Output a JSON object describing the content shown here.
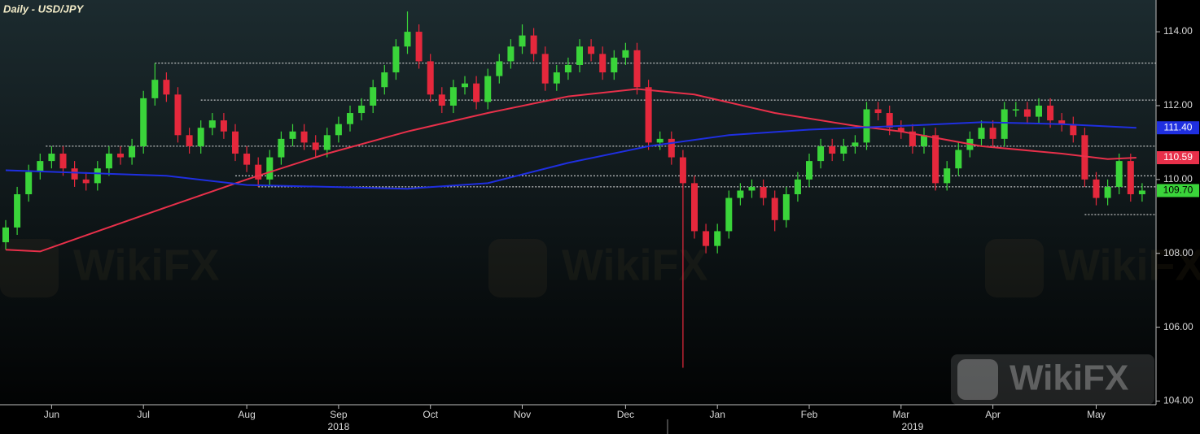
{
  "chart_data": {
    "type": "candlestick",
    "title": "Daily - USD/JPY",
    "categories": [
      null,
      null,
      null,
      null,
      "Jun",
      null,
      null,
      null,
      null,
      null,
      null,
      null,
      "Jul",
      null,
      null,
      null,
      null,
      null,
      null,
      null,
      null,
      "Aug",
      null,
      null,
      null,
      null,
      null,
      null,
      null,
      "Sep",
      null,
      null,
      null,
      null,
      null,
      null,
      null,
      "Oct",
      null,
      null,
      null,
      null,
      null,
      null,
      null,
      "Nov",
      null,
      null,
      null,
      null,
      null,
      null,
      null,
      null,
      "Dec",
      null,
      null,
      null,
      null,
      null,
      null,
      null,
      "Jan",
      null,
      null,
      null,
      null,
      null,
      null,
      null,
      "Feb",
      null,
      null,
      null,
      null,
      null,
      null,
      null,
      "Mar",
      null,
      null,
      null,
      null,
      null,
      null,
      null,
      "Apr",
      null,
      null,
      null,
      null,
      null,
      null,
      null,
      null,
      "May",
      null,
      null,
      null,
      null
    ],
    "year_labels": [
      {
        "label": "2018",
        "index": 29
      },
      {
        "label": "2019",
        "index": 79
      }
    ],
    "open": [
      108.3,
      108.7,
      109.6,
      110.2,
      110.5,
      110.7,
      110.3,
      110.0,
      109.9,
      110.3,
      110.7,
      110.6,
      110.9,
      112.2,
      112.7,
      112.3,
      111.2,
      110.9,
      111.4,
      111.6,
      111.3,
      110.7,
      110.4,
      110.0,
      110.6,
      111.1,
      111.3,
      111.0,
      110.8,
      111.2,
      111.5,
      111.8,
      112.0,
      112.5,
      112.9,
      113.6,
      114.0,
      113.2,
      112.3,
      112.0,
      112.5,
      112.6,
      112.1,
      112.8,
      113.2,
      113.6,
      113.9,
      113.4,
      112.6,
      112.9,
      113.1,
      113.6,
      113.4,
      112.9,
      113.3,
      113.5,
      112.5,
      111.0,
      111.1,
      110.6,
      109.9,
      108.6,
      108.2,
      108.6,
      109.5,
      109.7,
      109.8,
      109.5,
      108.9,
      109.6,
      110.0,
      110.5,
      110.9,
      110.7,
      110.9,
      111.0,
      111.9,
      111.8,
      111.4,
      111.3,
      110.9,
      111.2,
      109.9,
      110.3,
      110.8,
      111.1,
      111.4,
      111.1,
      111.9,
      111.9,
      111.7,
      112.0,
      111.6,
      111.5,
      111.2,
      110.0,
      109.5,
      109.8,
      110.5,
      109.6
    ],
    "high": [
      108.9,
      109.8,
      110.4,
      110.7,
      110.9,
      110.9,
      110.5,
      110.2,
      110.5,
      110.9,
      110.9,
      111.1,
      112.4,
      113.15,
      112.9,
      112.5,
      111.4,
      111.6,
      111.8,
      111.8,
      111.5,
      110.9,
      110.6,
      110.8,
      111.3,
      111.5,
      111.5,
      111.2,
      111.4,
      111.7,
      112.0,
      112.2,
      112.7,
      113.1,
      113.8,
      114.55,
      114.2,
      113.4,
      112.5,
      112.7,
      112.8,
      112.8,
      113.0,
      113.4,
      113.8,
      114.2,
      114.1,
      113.6,
      113.1,
      113.3,
      113.8,
      113.8,
      113.6,
      113.5,
      113.7,
      113.7,
      112.7,
      111.3,
      111.3,
      110.8,
      110.1,
      108.8,
      108.8,
      109.7,
      109.9,
      110.0,
      110.0,
      109.7,
      109.8,
      110.2,
      110.7,
      111.1,
      111.1,
      111.1,
      111.2,
      112.1,
      112.1,
      112.0,
      111.6,
      111.5,
      111.4,
      111.4,
      110.5,
      111.0,
      111.3,
      111.6,
      111.6,
      112.1,
      112.1,
      112.1,
      112.2,
      112.2,
      111.8,
      111.7,
      111.4,
      110.2,
      110.0,
      110.7,
      110.7,
      109.9
    ],
    "low": [
      108.1,
      108.5,
      109.4,
      110.0,
      110.3,
      110.1,
      109.8,
      109.7,
      109.7,
      110.1,
      110.4,
      110.4,
      110.7,
      112.0,
      112.1,
      111.0,
      110.7,
      110.7,
      111.2,
      111.1,
      110.5,
      110.2,
      109.8,
      109.8,
      110.4,
      110.9,
      110.8,
      110.6,
      110.6,
      111.0,
      111.3,
      111.6,
      111.8,
      112.3,
      112.7,
      113.4,
      113.0,
      112.1,
      111.8,
      111.8,
      112.3,
      111.9,
      111.9,
      112.6,
      113.0,
      113.4,
      113.2,
      112.4,
      112.4,
      112.7,
      112.9,
      113.2,
      112.7,
      112.7,
      113.1,
      112.3,
      110.8,
      110.8,
      110.4,
      104.9,
      108.4,
      108.0,
      108.0,
      108.4,
      109.3,
      109.5,
      109.3,
      108.6,
      108.7,
      109.4,
      109.8,
      110.3,
      110.5,
      110.5,
      110.7,
      110.8,
      111.6,
      111.2,
      111.1,
      110.7,
      110.7,
      109.7,
      109.7,
      110.1,
      110.6,
      110.9,
      110.9,
      110.9,
      111.7,
      111.5,
      111.5,
      111.4,
      111.3,
      111.0,
      109.8,
      109.3,
      109.3,
      109.6,
      109.4,
      109.4
    ],
    "close": [
      108.7,
      109.6,
      110.2,
      110.5,
      110.7,
      110.3,
      110.0,
      109.9,
      110.3,
      110.7,
      110.6,
      110.9,
      112.2,
      112.7,
      112.3,
      111.2,
      110.9,
      111.4,
      111.6,
      111.3,
      110.7,
      110.4,
      110.0,
      110.6,
      111.1,
      111.3,
      111.0,
      110.8,
      111.2,
      111.5,
      111.8,
      112.0,
      112.5,
      112.9,
      113.6,
      114.0,
      113.2,
      112.3,
      112.0,
      112.5,
      112.6,
      112.1,
      112.8,
      113.2,
      113.6,
      113.9,
      113.4,
      112.6,
      112.9,
      113.1,
      113.6,
      113.4,
      112.9,
      113.3,
      113.5,
      112.5,
      111.0,
      111.1,
      110.6,
      109.9,
      108.6,
      108.2,
      108.6,
      109.5,
      109.7,
      109.8,
      109.5,
      108.9,
      109.6,
      110.0,
      110.5,
      110.9,
      110.7,
      110.9,
      111.0,
      111.9,
      111.8,
      111.4,
      111.3,
      110.9,
      111.2,
      109.9,
      110.3,
      110.8,
      111.1,
      111.4,
      111.1,
      111.9,
      111.9,
      111.7,
      112.0,
      111.6,
      111.5,
      111.2,
      110.0,
      109.5,
      109.8,
      110.5,
      109.6,
      109.7
    ],
    "up_color": "#3ad43a",
    "down_color": "#e5283c",
    "last_price_label": "109.70",
    "series": [
      {
        "color": "#e8304a",
        "x": [
          0,
          3,
          14,
          21,
          28,
          35,
          42,
          49,
          55,
          60,
          67,
          74,
          78,
          85,
          92,
          96,
          98.5
        ],
        "values": [
          108.1,
          108.05,
          109.25,
          110.0,
          110.7,
          111.3,
          111.8,
          112.25,
          112.45,
          112.3,
          111.8,
          111.45,
          111.3,
          110.9,
          110.7,
          110.55,
          110.59
        ],
        "end_label": "110.59"
      },
      {
        "color": "#1f2fe0",
        "x": [
          0,
          14,
          21,
          35,
          42,
          49,
          56,
          63,
          70,
          78,
          85,
          92,
          98.5
        ],
        "values": [
          110.25,
          110.1,
          109.85,
          109.75,
          109.9,
          110.45,
          110.9,
          111.2,
          111.35,
          111.45,
          111.55,
          111.5,
          111.4
        ],
        "end_label": "111.40"
      }
    ],
    "levels": [
      {
        "y": 113.15,
        "from": 13
      },
      {
        "y": 112.15,
        "from": 17
      },
      {
        "y": 110.9,
        "from": 3.5
      },
      {
        "y": 110.1,
        "from": 20
      },
      {
        "y": 109.8,
        "from": 22
      },
      {
        "y": 109.05,
        "from": 94
      }
    ],
    "ylim": [
      103.9,
      114.86
    ],
    "yticks": [
      {
        "value": 104,
        "label": "104.00"
      },
      {
        "value": 106,
        "label": "106.00"
      },
      {
        "value": 108,
        "label": "108.00"
      },
      {
        "value": 110,
        "label": "110.00"
      },
      {
        "value": 112,
        "label": "112.00"
      },
      {
        "value": 114,
        "label": "114.00"
      }
    ],
    "watermark": "WikiFX"
  }
}
